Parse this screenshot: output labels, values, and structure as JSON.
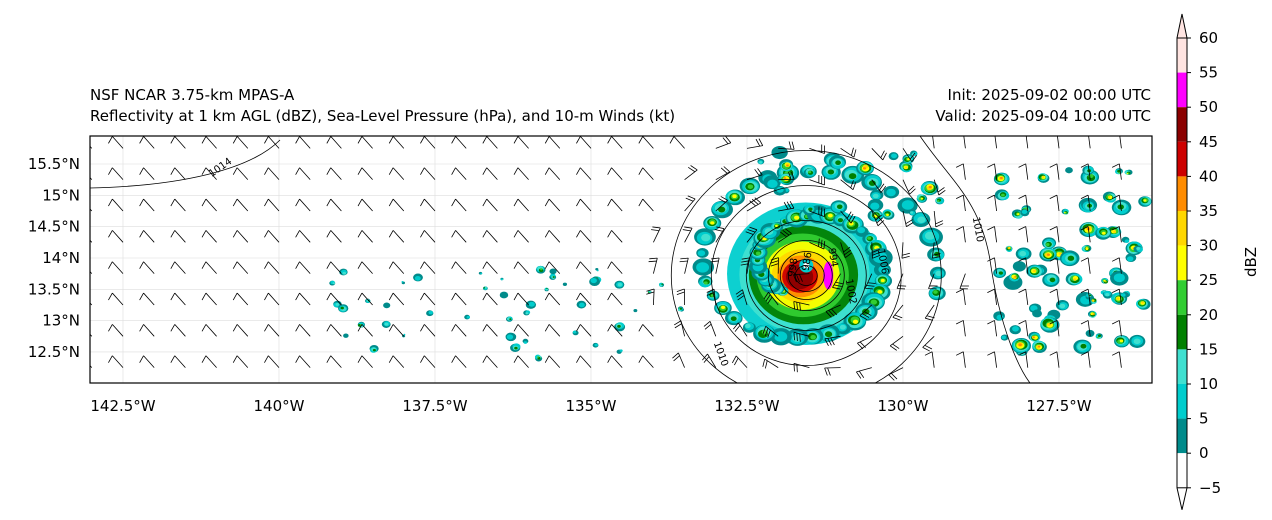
{
  "title": {
    "left_line1": "NSF NCAR 3.75-km MPAS-A",
    "left_line2": "Reflectivity at 1 km AGL (dBZ), Sea-Level Pressure (hPa), and 10-m Winds (kt)",
    "right_line1": "Init: 2025-09-02 00:00 UTC",
    "right_line2": "Valid: 2025-09-04 10:00 UTC"
  },
  "map": {
    "lon_range": [
      -143,
      -126.2
    ],
    "lat_range": [
      12.0,
      15.95
    ],
    "lon_ticks": [
      {
        "v": -142.5,
        "label": "142.5°W"
      },
      {
        "v": -140,
        "label": "140°W"
      },
      {
        "v": -137.5,
        "label": "137.5°W"
      },
      {
        "v": -135,
        "label": "135°W"
      },
      {
        "v": -132.5,
        "label": "132.5°W"
      },
      {
        "v": -130,
        "label": "130°W"
      },
      {
        "v": -127.5,
        "label": "127.5°W"
      }
    ],
    "lat_ticks": [
      {
        "v": 15.5,
        "label": "15.5°N"
      },
      {
        "v": 15,
        "label": "15°N"
      },
      {
        "v": 14.5,
        "label": "14.5°N"
      },
      {
        "v": 14,
        "label": "14°N"
      },
      {
        "v": 13.5,
        "label": "13.5°N"
      },
      {
        "v": 13,
        "label": "13°N"
      },
      {
        "v": 12.5,
        "label": "12.5°N"
      }
    ],
    "storm_center": {
      "lon": -131.55,
      "lat": 13.88
    },
    "contour_labels": [
      "1014",
      "1010",
      "1006",
      "1002",
      "998",
      "994",
      "986",
      "1010"
    ]
  },
  "colorbar": {
    "label": "dBZ",
    "ticks": [
      "60",
      "55",
      "50",
      "45",
      "40",
      "35",
      "30",
      "25",
      "20",
      "15",
      "10",
      "5",
      "0",
      "−5"
    ],
    "levels": [
      -5,
      0,
      5,
      10,
      15,
      20,
      25,
      30,
      35,
      40,
      45,
      50,
      55,
      60
    ],
    "colors": [
      "#ffffff",
      "#008b8b",
      "#00cdcd",
      "#40e0d0",
      "#008000",
      "#32cd32",
      "#ffff00",
      "#ffd700",
      "#ff8c00",
      "#cd0000",
      "#8b0000",
      "#ff00ff",
      "#ffe4e1"
    ]
  }
}
